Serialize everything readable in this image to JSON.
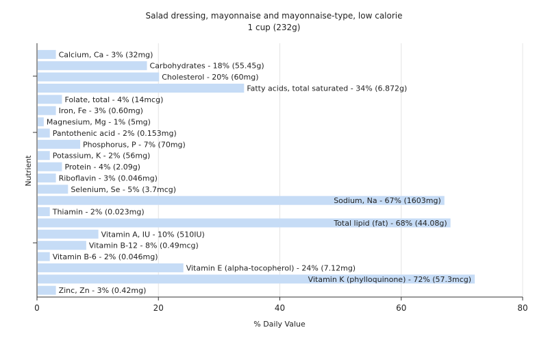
{
  "chart_data": {
    "type": "bar",
    "orientation": "horizontal",
    "title": "Salad dressing, mayonnaise and mayonnaise-type, low calorie",
    "subtitle": "1 cup (232g)",
    "xlabel": "% Daily Value",
    "ylabel": "Nutrient",
    "xlim": [
      0,
      80
    ],
    "xticks": [
      0,
      20,
      40,
      60,
      80
    ],
    "grid": true,
    "bar_color": "#c6dcf6",
    "categories": [
      "Calcium, Ca",
      "Carbohydrates",
      "Cholesterol",
      "Fatty acids, total saturated",
      "Folate, total",
      "Iron, Fe",
      "Magnesium, Mg",
      "Pantothenic acid",
      "Phosphorus, P",
      "Potassium, K",
      "Protein",
      "Riboflavin",
      "Selenium, Se",
      "Sodium, Na",
      "Thiamin",
      "Total lipid (fat)",
      "Vitamin A, IU",
      "Vitamin B-12",
      "Vitamin B-6",
      "Vitamin E (alpha-tocopherol)",
      "Vitamin K (phylloquinone)",
      "Zinc, Zn"
    ],
    "values": [
      3,
      18,
      20,
      34,
      4,
      3,
      1,
      2,
      7,
      2,
      4,
      3,
      5,
      67,
      2,
      68,
      10,
      8,
      2,
      24,
      72,
      3
    ],
    "labels": [
      "Calcium, Ca - 3% (32mg)",
      "Carbohydrates - 18% (55.45g)",
      "Cholesterol - 20% (60mg)",
      "Fatty acids, total saturated - 34% (6.872g)",
      "Folate, total - 4% (14mcg)",
      "Iron, Fe - 3% (0.60mg)",
      "Magnesium, Mg - 1% (5mg)",
      "Pantothenic acid - 2% (0.153mg)",
      "Phosphorus, P - 7% (70mg)",
      "Potassium, K - 2% (56mg)",
      "Protein - 4% (2.09g)",
      "Riboflavin - 3% (0.046mg)",
      "Selenium, Se - 5% (3.7mcg)",
      "Sodium, Na - 67% (1603mg)",
      "Thiamin - 2% (0.023mg)",
      "Total lipid (fat) - 68% (44.08g)",
      "Vitamin A, IU - 10% (510IU)",
      "Vitamin B-12 - 8% (0.49mcg)",
      "Vitamin B-6 - 2% (0.046mg)",
      "Vitamin E (alpha-tocopherol) - 24% (7.12mg)",
      "Vitamin K (phylloquinone) - 72% (57.3mcg)",
      "Zinc, Zn - 3% (0.42mg)"
    ]
  }
}
